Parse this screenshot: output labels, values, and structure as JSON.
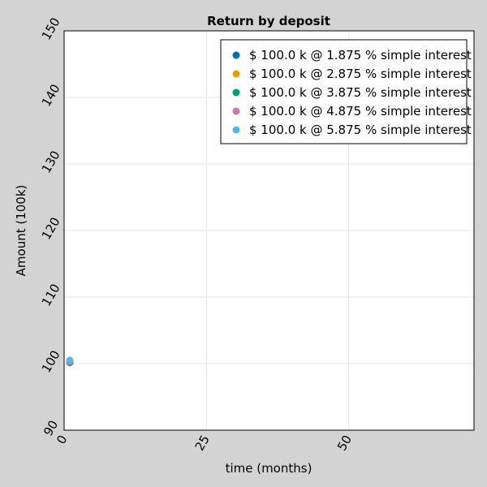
{
  "chart_data": {
    "type": "scatter",
    "title": "Return by deposit",
    "xlabel": "time (months)",
    "ylabel": "Amount (100k)",
    "xlim": [
      0,
      72
    ],
    "ylim": [
      90,
      150
    ],
    "xticks": [
      0,
      25,
      50
    ],
    "yticks": [
      90,
      100,
      110,
      120,
      130,
      140,
      150
    ],
    "grid": true,
    "legend_position": "top-right",
    "series": [
      {
        "name": "$ 100.0 k @ 1.875 % simple interest",
        "color": "#0072b2",
        "points": [
          [
            0,
            100.16
          ]
        ]
      },
      {
        "name": "$ 100.0 k @ 2.875 % simple interest",
        "color": "#e69f00",
        "points": [
          [
            0,
            100.24
          ]
        ]
      },
      {
        "name": "$ 100.0 k @ 3.875 % simple interest",
        "color": "#009e73",
        "points": [
          [
            0,
            100.32
          ]
        ]
      },
      {
        "name": "$ 100.0 k @ 4.875 % simple interest",
        "color": "#cc79a7",
        "points": [
          [
            0,
            100.41
          ]
        ]
      },
      {
        "name": "$ 100.0 k @ 5.875 % simple interest",
        "color": "#56b4e9",
        "points": [
          [
            0,
            100.49
          ]
        ]
      }
    ]
  }
}
